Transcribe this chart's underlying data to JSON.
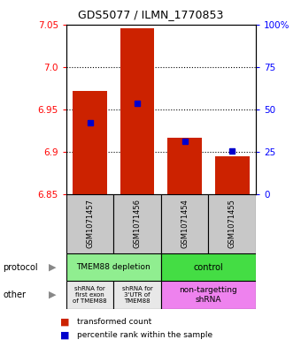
{
  "title": "GDS5077 / ILMN_1770853",
  "samples": [
    "GSM1071457",
    "GSM1071456",
    "GSM1071454",
    "GSM1071455"
  ],
  "red_values": [
    6.972,
    7.045,
    6.917,
    6.895
  ],
  "red_base": [
    6.85,
    6.85,
    6.85,
    6.85
  ],
  "blue_values": [
    6.934,
    6.957,
    6.912,
    6.901
  ],
  "ylim": [
    6.85,
    7.05
  ],
  "yticks_left": [
    6.85,
    6.9,
    6.95,
    7.0,
    7.05
  ],
  "yticks_right": [
    0,
    25,
    50,
    75,
    100
  ],
  "yticks_right_labels": [
    "0",
    "25",
    "50",
    "75",
    "100%"
  ],
  "gridlines": [
    6.9,
    6.95,
    7.0
  ],
  "protocol_labels": [
    "TMEM88 depletion",
    "control"
  ],
  "protocol_color_left": "#90ee90",
  "protocol_color_right": "#44dd44",
  "other_labels_left1": "shRNA for\nfirst exon\nof TMEM88",
  "other_labels_left2": "shRNA for\n3'UTR of\nTMEM88",
  "other_labels_right": "non-targetting\nshRNA",
  "other_color_left": "#e8e8e8",
  "other_color_right": "#ee82ee",
  "bar_color": "#cc2200",
  "blue_color": "#0000cc",
  "bg_color": "#c8c8c8",
  "legend_red": "transformed count",
  "legend_blue": "percentile rank within the sample"
}
